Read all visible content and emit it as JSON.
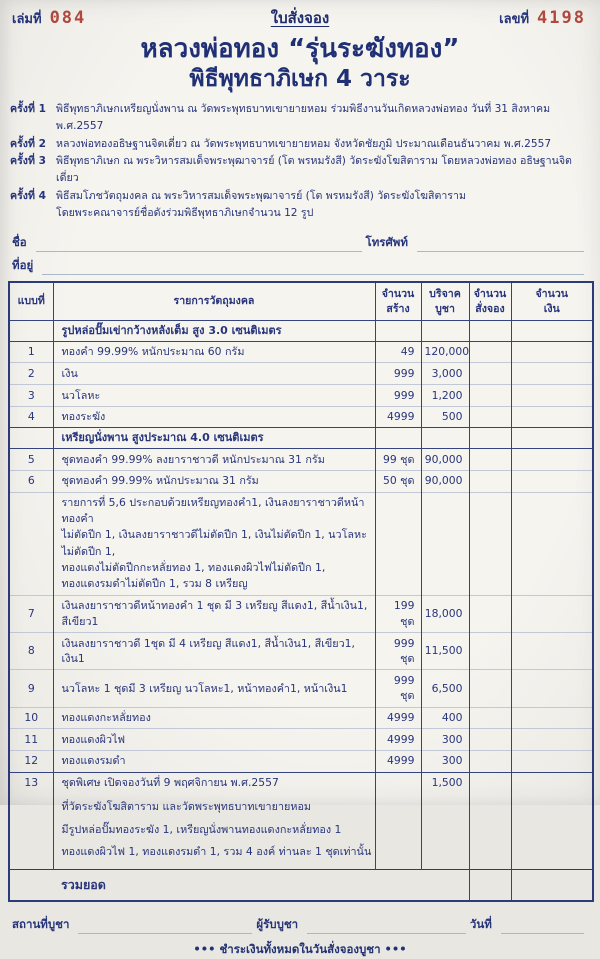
{
  "header": {
    "book_label": "เล่มที่",
    "book_no": "084",
    "form_title": "ใบสั่งจอง",
    "number_label": "เลขที่",
    "number_no": "4198"
  },
  "title": {
    "line1": "หลวงพ่อทอง “รุ่นระฆังทอง”",
    "line2": "พิธีพุทธาภิเษก 4 วาระ"
  },
  "ceremonies": [
    {
      "label": "ครั้งที่ 1",
      "lines": [
        "พิธีพุทธาภิเษกเหรียญนั่งพาน ณ วัดพระพุทธบาทเขายายหอม ร่วมพิธีงานวันเกิดหลวงพ่อทอง วันที่ 31 สิงหาคม พ.ศ.2557"
      ]
    },
    {
      "label": "ครั้งที่ 2",
      "lines": [
        "หลวงพ่อทองอธิษฐานจิตเดี่ยว ณ วัดพระพุทธบาทเขายายหอม จังหวัดชัยภูมิ ประมาณเดือนธันวาคม พ.ศ.2557"
      ]
    },
    {
      "label": "ครั้งที่ 3",
      "lines": [
        "พิธีพุทธาภิเษก ณ พระวิหารสมเด็จพระพุฒาจารย์ (โต พรหมรังสี) วัดระฆังโฆสิตาราม โดยหลวงพ่อทอง อธิษฐานจิตเดี่ยว"
      ]
    },
    {
      "label": "ครั้งที่ 4",
      "lines": [
        "พิธีสมโภชวัตถุมงคล ณ พระวิหารสมเด็จพระพุฒาจารย์ (โต พรหมรังสี) วัดระฆังโฆสิตาราม",
        "โดยพระคณาจารย์ชื่อดังร่วมพิธีพุทธาภิเษกจำนวน 12 รูป"
      ]
    }
  ],
  "form_fields": {
    "name_label": "ชื่อ",
    "name_value": "",
    "phone_label": "โทรศัพท์",
    "phone_value": "",
    "address_label": "ที่อยู่",
    "address_value": ""
  },
  "table": {
    "headers": {
      "no": "แบบที่",
      "desc": "รายการวัตถุมงคล",
      "made": "จำนวน\nสร้าง",
      "price": "บริจาค\nบูชา",
      "qty": "จำนวน\nสั่งจอง",
      "amount": "จำนวน\nเงิน"
    },
    "rows": [
      {
        "type": "section",
        "no": "",
        "desc": [
          "รูปหล่อปั๊มเข่ากว้างหลังเต็ม สูง 3.0 เซนติเมตร"
        ],
        "made": "",
        "price": "",
        "qty": "",
        "amount": ""
      },
      {
        "type": "item",
        "no": "1",
        "desc": [
          "ทองคำ 99.99% หนักประมาณ 60 กรัม"
        ],
        "made": "49",
        "price": "120,000",
        "qty": "",
        "amount": ""
      },
      {
        "type": "item",
        "no": "2",
        "desc": [
          "เงิน"
        ],
        "made": "999",
        "price": "3,000",
        "qty": "",
        "amount": ""
      },
      {
        "type": "item",
        "no": "3",
        "desc": [
          "นวโลหะ"
        ],
        "made": "999",
        "price": "1,200",
        "qty": "",
        "amount": ""
      },
      {
        "type": "item",
        "no": "4",
        "desc": [
          "ทองระฆัง"
        ],
        "made": "4999",
        "price": "500",
        "qty": "",
        "amount": ""
      },
      {
        "type": "section",
        "no": "",
        "desc": [
          "เหรียญนั่งพาน สูงประมาณ 4.0 เซนติเมตร"
        ],
        "made": "",
        "price": "",
        "qty": "",
        "amount": ""
      },
      {
        "type": "item",
        "no": "5",
        "desc": [
          "ชุดทองคำ 99.99% ลงยาราชาวดี หนักประมาณ 31 กรัม"
        ],
        "made": "99 ชุด",
        "price": "90,000",
        "qty": "",
        "amount": ""
      },
      {
        "type": "item",
        "no": "6",
        "desc": [
          "ชุดทองคำ 99.99% หนักประมาณ 31 กรัม"
        ],
        "made": "50 ชุด",
        "price": "90,000",
        "qty": "",
        "amount": ""
      },
      {
        "type": "note",
        "no": "",
        "desc": [
          "รายการที่ 5,6 ประกอบด้วยเหรียญทองคำ1, เงินลงยาราชาวดีหน้าทองคำ",
          "ไม่ตัดปีก 1, เงินลงยาราชาวดีไม่ตัดปีก 1, เงินไม่ตัดปีก 1, นวโลหะไม่ตัดปีก 1,",
          "ทองแดงไม่ตัดปีกกะหลั่ยทอง 1, ทองแดงผิวไฟไม่ตัดปีก 1,",
          "ทองแดงรมดำไม่ตัดปีก 1, รวม 8 เหรียญ"
        ],
        "made": "",
        "price": "",
        "qty": "",
        "amount": ""
      },
      {
        "type": "item",
        "no": "7",
        "desc": [
          "เงินลงยาราชาวดีหน้าทองคำ 1 ชุด มี 3 เหรียญ สีแดง1, สีน้ำเงิน1, สีเขียว1"
        ],
        "made": "199 ชุด",
        "price": "18,000",
        "qty": "",
        "amount": ""
      },
      {
        "type": "item",
        "no": "8",
        "desc": [
          "เงินลงยาราชาวดี 1ชุด มี 4 เหรียญ สีแดง1, สีน้ำเงิน1, สีเขียว1, เงิน1"
        ],
        "made": "999 ชุด",
        "price": "11,500",
        "qty": "",
        "amount": ""
      },
      {
        "type": "item",
        "no": "9",
        "desc": [
          "นวโลหะ 1 ชุดมี 3 เหรียญ นวโลหะ1, หน้าทองคำ1, หน้าเงิน1"
        ],
        "made": "999 ชุด",
        "price": "6,500",
        "qty": "",
        "amount": ""
      },
      {
        "type": "item",
        "no": "10",
        "desc": [
          "ทองแดงกะหลั่ยทอง"
        ],
        "made": "4999",
        "price": "400",
        "qty": "",
        "amount": ""
      },
      {
        "type": "item",
        "no": "11",
        "desc": [
          "ทองแดงผิวไฟ"
        ],
        "made": "4999",
        "price": "300",
        "qty": "",
        "amount": ""
      },
      {
        "type": "item",
        "no": "12",
        "desc": [
          "ทองแดงรมดำ"
        ],
        "made": "4999",
        "price": "300",
        "qty": "",
        "amount": ""
      },
      {
        "type": "special",
        "no": "13",
        "desc": [
          "ชุดพิเศษ เปิดจองวันที่ 9 พฤศจิกายน พ.ศ.2557",
          "ที่วัดระฆังโฆสิตาราม และวัดพระพุทธบาทเขายายหอม",
          "มีรูปหล่อปั๊มทองระฆัง 1, เหรียญนั่งพานทองแดงกะหลั่ยทอง 1",
          "ทองแดงผิวไฟ 1, ทองแดงรมดำ 1, รวม 4 องค์  ท่านละ 1 ชุดเท่านั้น"
        ],
        "made": "",
        "price": "1,500",
        "qty": "",
        "amount": ""
      }
    ],
    "total_label": "รวมยอด",
    "total_qty": "",
    "total_amount": ""
  },
  "footer": {
    "place_label": "สถานที่บูชา",
    "place_value": "",
    "receiver_label": "ผู้รับบูชา",
    "receiver_value": "",
    "date_label": "วันที่",
    "date_value": "",
    "note": "••• ชำระเงินทั้งหมดในวันสั่งจองบูชา •••"
  },
  "colors": {
    "ink_navy": "#26347a",
    "stamp_red": "#b2493e",
    "paper": "#f4f2ed"
  }
}
